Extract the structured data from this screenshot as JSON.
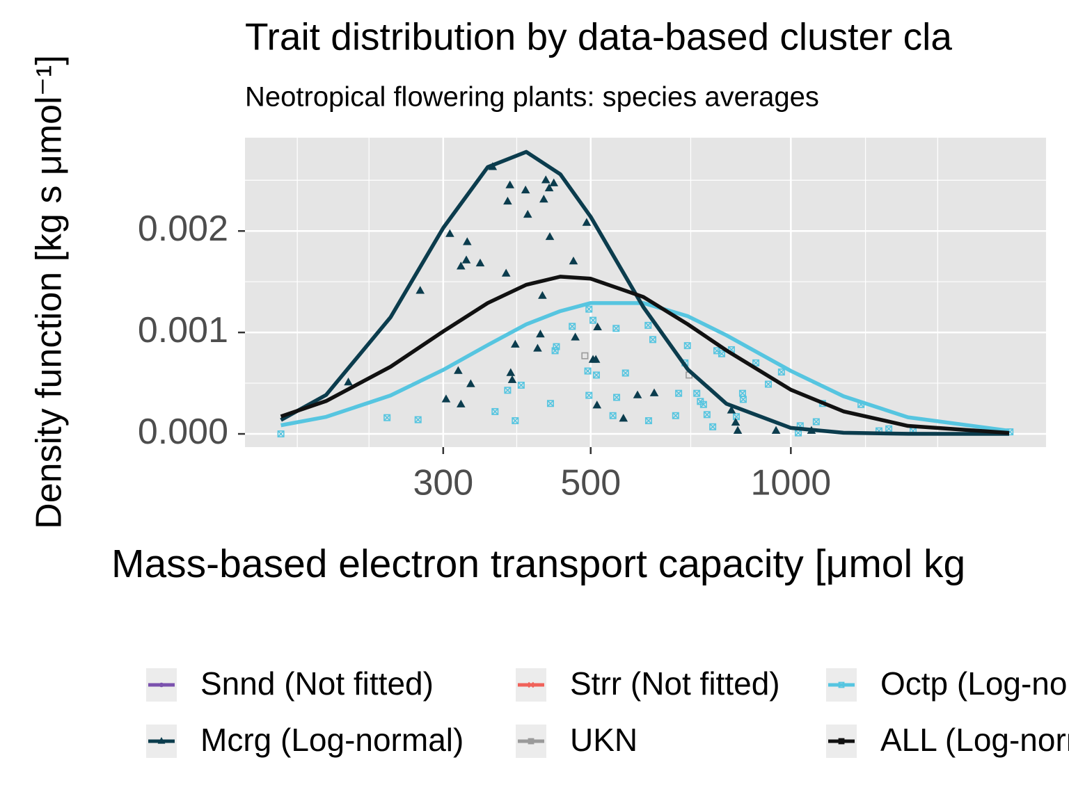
{
  "chart_data": {
    "type": "density_scatter",
    "title": "Trait distribution by data-based cluster cla",
    "subtitle": "Neotropical flowering plants: species averages",
    "x_label": "Mass-based electron transport capacity [μmol kg",
    "y_label": "Density function [kg s μmol⁻¹]",
    "x_log": true,
    "grid": true,
    "xlim": [
      151,
      2420
    ],
    "ylim": [
      -0.00013,
      0.00292
    ],
    "xticks": [
      300,
      500,
      1000
    ],
    "yticks": [
      {
        "value": 0,
        "label": "0.000"
      },
      {
        "value": 0.001,
        "label": "0.001"
      },
      {
        "value": 0.002,
        "label": "0.002"
      }
    ],
    "x_minor_grid": [
      181,
      232,
      387,
      707,
      1295,
      1663
    ],
    "y_minor_grid": [
      0.0005,
      0.0015,
      0.0025
    ],
    "legend_position": "bottom",
    "curve_x": [
      171,
      200,
      250,
      300,
      350,
      400,
      450,
      500,
      600,
      700,
      800,
      1000,
      1200,
      1500,
      2130
    ],
    "series": [
      {
        "name": "Snnd (Not fitted)",
        "color": "#7b52ae",
        "marker": "circle"
      },
      {
        "name": "Strr (Not fitted)",
        "color": "#f0625a",
        "marker": "cross"
      },
      {
        "name": "Octp (Log-normal)",
        "color": "#56c5e0",
        "marker": "boxcross",
        "x": [
          171,
          247,
          275,
          359,
          375,
          385,
          393,
          435,
          444,
          442,
          469,
          497,
          504,
          510,
          495,
          497,
          547,
          546,
          540,
          564,
          611,
          610,
          620,
          671,
          678,
          693,
          699,
          722,
          731,
          739,
          748,
          763,
          774,
          787,
          814,
          828,
          846,
          848,
          886,
          925,
          968,
          1026,
          1033,
          1092,
          1116,
          1275,
          1357,
          1404,
          1527,
          2136
        ],
        "y": [
          0,
          0.00016,
          0.00014,
          0.00022,
          0.00043,
          0.00013,
          0.00048,
          0.0003,
          0.00086,
          0.00082,
          0.00106,
          0.00123,
          0.00112,
          0.00058,
          0.00062,
          0.00038,
          0.00036,
          0.00104,
          0.00018,
          0.0006,
          0.00013,
          0.00107,
          0.00093,
          0.00018,
          0.0004,
          0.0007,
          0.00087,
          0.0004,
          0.00032,
          0.00029,
          0.00019,
          7e-05,
          0.00082,
          0.00079,
          0.00083,
          0.00017,
          0.0004,
          0.00034,
          0.0007,
          0.00049,
          0.00061,
          1e-05,
          8e-05,
          0.00012,
          0.0003,
          0.00029,
          3e-05,
          5e-05,
          3e-05,
          2e-05
        ],
        "fit": [
          8.5e-05,
          0.000168,
          0.000379,
          0.000631,
          0.000876,
          0.00108,
          0.00121,
          0.00129,
          0.00129,
          0.00116,
          0.000972,
          0.000621,
          0.000371,
          0.000164,
          3e-05
        ]
      },
      {
        "name": "Mcrg (Log-normal)",
        "color": "#0b3c4d",
        "marker": "triangle",
        "x": [
          216,
          277,
          307,
          326,
          319,
          325,
          341,
          356,
          378,
          375,
          399,
          402,
          425,
          428,
          433,
          440,
          373,
          434,
          471,
          493,
          423,
          385,
          379,
          381,
          416,
          420,
          316,
          330,
          303,
          319,
          474,
          504,
          509,
          511,
          512,
          560,
          588,
          623,
          814,
          826,
          832,
          950,
          1074
        ],
        "y": [
          0.000507,
          0.00141,
          0.00197,
          0.00189,
          0.00165,
          0.00171,
          0.00168,
          0.00263,
          0.00245,
          0.00229,
          0.0024,
          0.00216,
          0.00231,
          0.0025,
          0.00242,
          0.00247,
          0.00158,
          0.00194,
          0.0017,
          0.00208,
          0.00136,
          0.00088,
          0.0006,
          0.00053,
          0.00084,
          0.00098,
          0.00062,
          0.00049,
          0.00034,
          0.00029,
          0.00095,
          0.00073,
          0.00073,
          0.00028,
          0.00105,
          0.00015,
          0.00038,
          0.0004,
          0.00023,
          0.00011,
          3e-05,
          3e-05,
          3e-05
        ],
        "fit": [
          0.000137,
          0.000384,
          0.00115,
          0.00203,
          0.00263,
          0.00278,
          0.00256,
          0.00214,
          0.00125,
          0.000635,
          0.000297,
          5.9e-05,
          1.15e-05,
          1e-06,
          0
        ]
      },
      {
        "name": "UKN",
        "color": "#9a9a9a",
        "marker": "square",
        "x": [
          490,
          703
        ],
        "y": [
          0.00077,
          0.00058
        ]
      },
      {
        "name": "ALL (Log-normal)",
        "color": "#111111",
        "marker": "square",
        "fit": [
          0.000172,
          0.000324,
          0.000662,
          0.00101,
          0.00129,
          0.00147,
          0.00155,
          0.00153,
          0.00135,
          0.00108,
          0.000823,
          0.000435,
          0.000222,
          7.9e-05,
          1e-05
        ]
      }
    ]
  }
}
